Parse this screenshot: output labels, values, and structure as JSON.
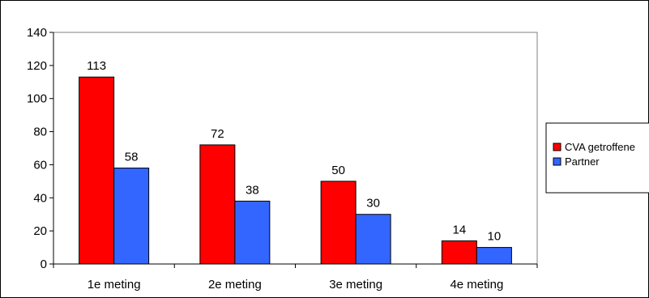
{
  "chart_data": {
    "type": "bar",
    "title": "",
    "xlabel": "",
    "ylabel": "",
    "categories": [
      "1e meting",
      "2e meting",
      "3e meting",
      "4e meting"
    ],
    "series": [
      {
        "name": "CVA getroffene",
        "color": "#ff0000",
        "values": [
          113,
          72,
          50,
          14
        ]
      },
      {
        "name": "Partner",
        "color": "#3366ff",
        "values": [
          58,
          38,
          30,
          10
        ]
      }
    ],
    "ylim": [
      0,
      140
    ],
    "yticks": [
      0,
      20,
      40,
      60,
      80,
      100,
      120,
      140
    ],
    "grid": false,
    "legend": "right",
    "data_labels": true
  }
}
